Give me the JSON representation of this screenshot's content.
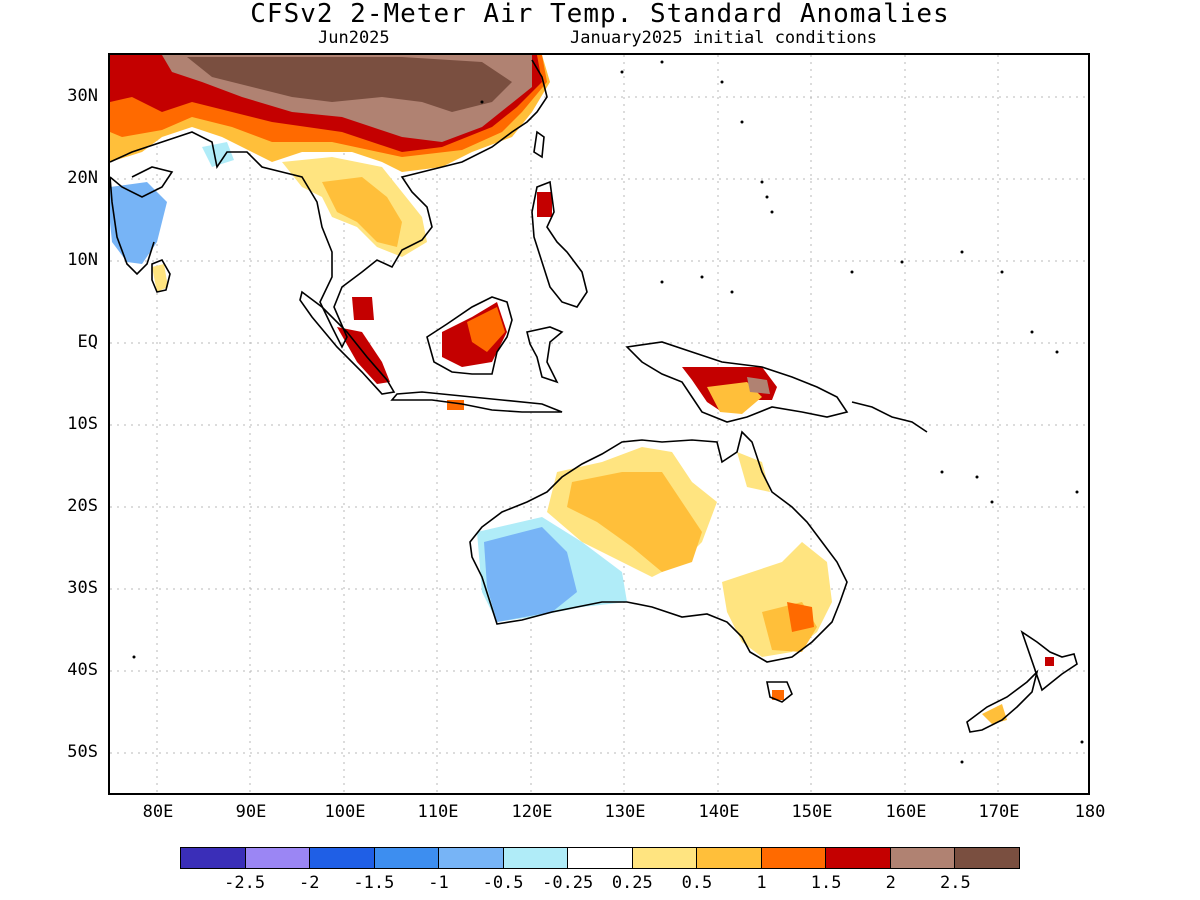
{
  "title": "CFSv2 2-Meter Air Temp. Standard Anomalies",
  "subtitle_left": "Jun2025",
  "subtitle_right": "January2025 initial conditions",
  "y_axis_labels": [
    "30N",
    "20N",
    "10N",
    "EQ",
    "10S",
    "20S",
    "30S",
    "40S",
    "50S"
  ],
  "x_axis_labels": [
    "80E",
    "90E",
    "100E",
    "110E",
    "120E",
    "130E",
    "140E",
    "150E",
    "160E",
    "170E",
    "180"
  ],
  "colorbar": {
    "colors": [
      "#3a2eb8",
      "#9b86f4",
      "#1f5fe6",
      "#3d8ef0",
      "#77b4f6",
      "#b0ecf8",
      "#ffffff",
      "#ffe480",
      "#ffbf3a",
      "#ff6a00",
      "#c40000",
      "#b08272",
      "#7a4f40"
    ],
    "labels": [
      "-2.5",
      "-2",
      "-1.5",
      "-1",
      "-0.5",
      "-0.25",
      "0.25",
      "0.5",
      "1",
      "1.5",
      "2",
      "2.5"
    ]
  }
}
